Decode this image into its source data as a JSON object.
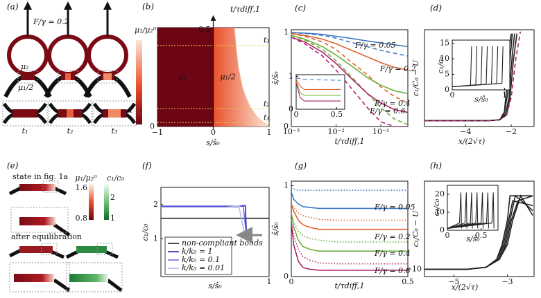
{
  "panel_a": {
    "label": "(a)",
    "force": "F/γ = 0.2",
    "mu2": "μ₂",
    "mu1_half": "μ₁/2",
    "times": [
      "t₁",
      "t₂",
      "t₃"
    ]
  },
  "panel_e": {
    "label": "(e)",
    "state": "state in fig. 1a",
    "after": "after equilibration",
    "cb1_label": "μ₁/μ₂⁰",
    "cb1_ticks": [
      1.6,
      0.8
    ],
    "cb2_label": "c₁/c₀",
    "cb2_ticks": [
      2,
      1
    ]
  },
  "chart_data": [
    {
      "type": "heatmap",
      "panel_label": "(b)",
      "xlabel": "s/ŝ₀",
      "ylabel": "t/τdiff,1",
      "xlim": [
        -1,
        1
      ],
      "ylim": [
        0,
        0.5
      ],
      "xticks": [
        {
          "value": -1,
          "label": "−1"
        },
        0,
        1
      ],
      "yticks": [
        0,
        0.5
      ],
      "left_label": "μ₂",
      "right_label": "μ₁/2",
      "left_color": "#6e0514",
      "right_colors": [
        "#e8502a",
        "#fde4d8"
      ],
      "boundary": {
        "t": [
          0,
          0.02,
          0.05,
          0.1,
          0.15,
          0.2,
          0.3,
          0.4,
          0.5
        ],
        "s": [
          1,
          0.9,
          0.78,
          0.66,
          0.58,
          0.52,
          0.45,
          0.41,
          0.38
        ]
      },
      "times": [
        {
          "label": "t₁",
          "value": 0.02
        },
        {
          "label": "t₂",
          "value": 0.09
        },
        {
          "label": "t₃",
          "value": 0.41
        }
      ],
      "cbar_label": "μ₁/μ₂⁰",
      "cbar_lim": [
        0.8,
        2
      ],
      "cbar_ticks": [
        1
      ]
    },
    {
      "type": "line",
      "panel_label": "(c)",
      "xlabel": "t/τdiff,1",
      "ylabel": "ŝ/ŝ₀",
      "xlog": true,
      "xlim": [
        0.001,
        0.4
      ],
      "ylim": [
        0,
        1.03
      ],
      "xticks": [
        {
          "value": 0.001,
          "label": "10⁻³"
        },
        {
          "value": 0.01,
          "label": "10⁻²"
        },
        {
          "value": 0.1,
          "label": "10⁻¹"
        }
      ],
      "yticks": [
        0,
        1
      ],
      "x": [
        0.001,
        0.002,
        0.005,
        0.01,
        0.02,
        0.05,
        0.1,
        0.2,
        0.4
      ],
      "series": [
        {
          "color": "#3a78c4",
          "style": "solid",
          "values": [
            1,
            0.995,
            0.98,
            0.96,
            0.94,
            0.91,
            0.89,
            0.87,
            0.85
          ]
        },
        {
          "color": "#3a78c4",
          "style": "dashed",
          "values": [
            1,
            0.99,
            0.97,
            0.94,
            0.9,
            0.85,
            0.81,
            0.78,
            0.75
          ]
        },
        {
          "color": "#e0622a",
          "style": "solid",
          "values": [
            0.99,
            0.97,
            0.93,
            0.88,
            0.82,
            0.74,
            0.68,
            0.63,
            0.6
          ]
        },
        {
          "color": "#e0622a",
          "style": "dashed",
          "values": [
            0.99,
            0.96,
            0.9,
            0.82,
            0.7,
            0.55,
            0.42,
            0.32,
            0.25
          ]
        },
        {
          "color": "#6cae3a",
          "style": "solid",
          "values": [
            0.97,
            0.93,
            0.85,
            0.76,
            0.66,
            0.52,
            0.44,
            0.38,
            0.35
          ]
        },
        {
          "color": "#6cae3a",
          "style": "dashed",
          "values": [
            0.97,
            0.92,
            0.82,
            0.7,
            0.55,
            0.35,
            0.2,
            0.08,
            0.02
          ]
        },
        {
          "color": "#b0206a",
          "style": "solid",
          "values": [
            0.95,
            0.9,
            0.79,
            0.67,
            0.53,
            0.35,
            0.25,
            0.18,
            0.15
          ]
        },
        {
          "color": "#b0206a",
          "style": "dashed",
          "values": [
            0.95,
            0.88,
            0.75,
            0.6,
            0.43,
            0.2,
            0.05,
            0,
            0
          ]
        }
      ],
      "annotations": [
        {
          "text": "F/γ = 0.05",
          "color": "#3a78c4"
        },
        {
          "text": "F/γ = 0.2",
          "color": "#e0622a"
        },
        {
          "text": "F/γ = 0.4",
          "color": "#6cae3a"
        },
        {
          "text": "F/γ = 0.6",
          "color": "#b0206a"
        }
      ]
    },
    {
      "type": "line",
      "xlim": [
        0,
        0.6
      ],
      "ylim": [
        0,
        1.05
      ],
      "xticks": [
        0,
        0.5
      ],
      "yticks": [
        0,
        1
      ],
      "x": [
        0,
        0.05,
        0.1,
        0.55
      ],
      "series": [
        {
          "color": "#3a78c4",
          "style": "dashed",
          "values": [
            0.95,
            0.93,
            0.9,
            0.88
          ]
        },
        {
          "color": "#e0622a",
          "style": "solid",
          "values": [
            0.9,
            0.7,
            0.6,
            0.6
          ]
        },
        {
          "color": "#6cae3a",
          "style": "solid",
          "values": [
            0.85,
            0.5,
            0.42,
            0.42
          ]
        },
        {
          "color": "#b0206a",
          "style": "solid",
          "values": [
            0.8,
            0.35,
            0.25,
            0.25
          ]
        }
      ]
    },
    {
      "type": "line",
      "panel_label": "(d)",
      "xlabel": "x/(2√τ)",
      "ylabel": "c₁/C₀ − U",
      "xlim": [
        -5.8,
        -1
      ],
      "ylim": [
        0,
        10
      ],
      "xticks": [
        {
          "value": -4,
          "label": "−4"
        },
        {
          "value": -2,
          "label": "−2"
        }
      ],
      "yticks": [],
      "series": [
        {
          "color": "#222222",
          "style": "solid",
          "x": [
            -5.8,
            -3,
            -2.5,
            -2.3,
            -2.2,
            -2.1,
            -2.0
          ],
          "values": [
            0.6,
            0.6,
            0.7,
            1.5,
            4,
            8,
            9.6
          ]
        },
        {
          "color": "#222222",
          "style": "solid",
          "x": [
            -5.8,
            -3,
            -2.5,
            -2.3,
            -2.15,
            -2.05,
            -1.95
          ],
          "values": [
            0.6,
            0.6,
            0.7,
            1.4,
            3.5,
            7,
            9.6
          ]
        },
        {
          "color": "#222222",
          "style": "solid",
          "x": [
            -5.8,
            -3,
            -2.5,
            -2.25,
            -2.1,
            -1.95,
            -1.85
          ],
          "values": [
            0.6,
            0.6,
            0.7,
            1.3,
            3,
            7.5,
            9.6
          ]
        },
        {
          "color": "#222222",
          "style": "solid",
          "x": [
            -5.8,
            -3,
            -2.5,
            -2.2,
            -2.05,
            -1.9,
            -1.75
          ],
          "values": [
            0.6,
            0.6,
            0.7,
            1.2,
            3,
            7,
            9.6
          ]
        },
        {
          "color": "#b0206a",
          "style": "dashed",
          "x": [
            -5.8,
            -3,
            -2.5,
            -2.2,
            -2.0,
            -1.8,
            -1.6
          ],
          "values": [
            0.6,
            0.6,
            0.7,
            1.2,
            3,
            7,
            9.8
          ]
        }
      ]
    },
    {
      "type": "line",
      "xlabel": "s/ŝ₀",
      "ylabel": "c₁/c₀",
      "xlim": [
        0,
        1.1
      ],
      "ylim": [
        0,
        16
      ],
      "xticks": [
        0,
        1
      ],
      "yticks": [
        0,
        5,
        10,
        15
      ],
      "series": [
        {
          "color": "#222222",
          "style": "solid",
          "x": [
            0,
            0.35,
            0.37
          ],
          "values": [
            1,
            1.5,
            14
          ]
        },
        {
          "color": "#222222",
          "style": "solid",
          "x": [
            0,
            0.45,
            0.47
          ],
          "values": [
            1,
            1.6,
            14
          ]
        },
        {
          "color": "#222222",
          "style": "solid",
          "x": [
            0,
            0.55,
            0.57
          ],
          "values": [
            1,
            1.7,
            14
          ]
        },
        {
          "color": "#222222",
          "style": "solid",
          "x": [
            0,
            0.65,
            0.67
          ],
          "values": [
            1,
            1.8,
            14
          ]
        },
        {
          "color": "#222222",
          "style": "solid",
          "x": [
            0,
            0.75,
            0.77
          ],
          "values": [
            1,
            1.9,
            14
          ]
        },
        {
          "color": "#222222",
          "style": "solid",
          "x": [
            0,
            0.85,
            0.87
          ],
          "values": [
            1,
            2,
            14
          ]
        },
        {
          "color": "#222222",
          "style": "solid",
          "x": [
            0,
            0.95,
            0.97
          ],
          "values": [
            1,
            2.1,
            14
          ]
        }
      ]
    },
    {
      "type": "line",
      "panel_label": "(f)",
      "xlabel": "s/ŝ₀",
      "ylabel": "c₁/c₀",
      "xlim": [
        0,
        1
      ],
      "ylim": [
        -0.1,
        2.5
      ],
      "xticks": [
        1
      ],
      "yticks": [
        1,
        2
      ],
      "series": [
        {
          "name": "non-compliant bonds",
          "color": "#222222",
          "style": "solid",
          "x": [
            0,
            1
          ],
          "values": [
            1.6,
            1.6
          ]
        },
        {
          "name": "k/k₀ = 1",
          "color": "#2020c0",
          "style": "solid",
          "x": [
            0,
            0.75,
            0.78,
            0.79,
            0.8
          ],
          "values": [
            1.95,
            1.95,
            1.97,
            1.2,
            1.05
          ]
        },
        {
          "name": "k/k₀ = 0.1",
          "color": "#7070e0",
          "style": "solid",
          "x": [
            0,
            0.7,
            0.76,
            0.79
          ],
          "values": [
            1.93,
            1.93,
            1.98,
            1.1
          ]
        },
        {
          "name": "k/k₀ = 0.01",
          "color": "#b8b8f0",
          "style": "solid",
          "x": [
            0,
            0.6,
            0.72,
            0.78
          ],
          "values": [
            1.92,
            1.92,
            1.96,
            1.05
          ]
        }
      ]
    },
    {
      "type": "line",
      "panel_label": "(g)",
      "xlabel": "t/τdiff,1",
      "ylabel": "ŝ/ŝ₀",
      "xlim": [
        0,
        0.5
      ],
      "ylim": [
        0,
        1.05
      ],
      "xticks": [
        0,
        0.5
      ],
      "yticks": [
        0,
        1
      ],
      "x": [
        0,
        0.01,
        0.03,
        0.05,
        0.08,
        0.12,
        0.2,
        0.3,
        0.5
      ],
      "series": [
        {
          "color": "#3a78c4",
          "style": "dotted",
          "values": [
            0.97,
            0.96,
            0.95,
            0.95,
            0.95,
            0.95,
            0.95,
            0.95,
            0.95
          ]
        },
        {
          "color": "#3a78c4",
          "style": "solid",
          "values": [
            0.93,
            0.85,
            0.8,
            0.77,
            0.76,
            0.75,
            0.75,
            0.75,
            0.75
          ]
        },
        {
          "color": "#e0622a",
          "style": "dotted",
          "values": [
            0.8,
            0.76,
            0.7,
            0.67,
            0.65,
            0.63,
            0.62,
            0.62,
            0.62
          ]
        },
        {
          "color": "#e0622a",
          "style": "solid",
          "values": [
            0.8,
            0.72,
            0.62,
            0.57,
            0.54,
            0.52,
            0.52,
            0.52,
            0.52
          ]
        },
        {
          "color": "#6cae3a",
          "style": "dotted",
          "values": [
            0.7,
            0.6,
            0.5,
            0.45,
            0.42,
            0.4,
            0.38,
            0.38,
            0.38
          ]
        },
        {
          "color": "#6cae3a",
          "style": "solid",
          "values": [
            0.7,
            0.55,
            0.4,
            0.33,
            0.3,
            0.28,
            0.28,
            0.28,
            0.28
          ]
        },
        {
          "color": "#b0206a",
          "style": "dotted",
          "values": [
            0.6,
            0.45,
            0.3,
            0.22,
            0.18,
            0.15,
            0.14,
            0.14,
            0.14
          ]
        },
        {
          "color": "#b0206a",
          "style": "solid",
          "values": [
            0.6,
            0.35,
            0.17,
            0.1,
            0.08,
            0.07,
            0.07,
            0.07,
            0.07
          ]
        }
      ],
      "annotations": [
        {
          "text": "F/γ = 0.05",
          "color": "#3a78c4"
        },
        {
          "text": "F/γ = 0.2",
          "color": "#e0622a"
        },
        {
          "text": "F/γ = 0.4",
          "color": "#6cae3a"
        },
        {
          "text": "F/γ = 0.6",
          "color": "#b0206a"
        }
      ]
    },
    {
      "type": "line",
      "panel_label": "(h)",
      "xlabel": "x/(2√τ)",
      "ylabel": "c₁/C₀ − U",
      "xlim": [
        -6.1,
        -2
      ],
      "ylim": [
        -11.5,
        8
      ],
      "xticks": [
        {
          "value": -5,
          "label": "−5"
        },
        {
          "value": -3,
          "label": "−3"
        }
      ],
      "yticks": [
        {
          "value": -10,
          "label": "−10"
        }
      ],
      "series": [
        {
          "color": "#222222",
          "style": "solid",
          "x": [
            -6.1,
            -4.5,
            -3.8,
            -3.4,
            -3.2,
            -3.0,
            -2.9,
            -2.05
          ],
          "values": [
            -10,
            -10,
            -9.6,
            -8,
            -5,
            0,
            5,
            5
          ]
        },
        {
          "color": "#222222",
          "style": "solid",
          "x": [
            -6.1,
            -4.5,
            -3.8,
            -3.4,
            -3.15,
            -2.95,
            -2.8,
            -2.05
          ],
          "values": [
            -10,
            -10,
            -9.6,
            -8,
            -5,
            0,
            4,
            3
          ]
        },
        {
          "color": "#222222",
          "style": "solid",
          "x": [
            -6.1,
            -4.5,
            -3.8,
            -3.35,
            -3.1,
            -2.9,
            -2.7,
            -2.05
          ],
          "values": [
            -10,
            -10,
            -9.6,
            -8,
            -5,
            0,
            5,
            2
          ]
        },
        {
          "color": "#222222",
          "style": "solid",
          "x": [
            -6.1,
            -4.5,
            -3.8,
            -3.3,
            -3.05,
            -2.85,
            -2.6,
            -2.05
          ],
          "values": [
            -10,
            -10,
            -9.6,
            -8,
            -5,
            0,
            4,
            5
          ]
        },
        {
          "color": "#222222",
          "style": "solid",
          "x": [
            -6.1,
            -4.5,
            -3.8,
            -3.3,
            -3.0,
            -2.8,
            -2.5,
            -2.05
          ],
          "values": [
            -10,
            -10,
            -9.6,
            -8,
            -5,
            0,
            5,
            1
          ]
        }
      ]
    },
    {
      "type": "line",
      "xlabel": "s/ŝ₀",
      "ylabel": "c₁/c₀",
      "xlim": [
        0,
        0.75
      ],
      "ylim": [
        0,
        25
      ],
      "xticks": [
        0,
        0.5
      ],
      "yticks": [
        0,
        10,
        20
      ],
      "series": [
        {
          "color": "#222222",
          "style": "solid",
          "x": [
            0,
            0.18,
            0.2,
            0.21
          ],
          "values": [
            1,
            4,
            21,
            1
          ]
        },
        {
          "color": "#222222",
          "style": "solid",
          "x": [
            0,
            0.26,
            0.28,
            0.29
          ],
          "values": [
            1,
            4,
            21,
            1
          ]
        },
        {
          "color": "#222222",
          "style": "solid",
          "x": [
            0,
            0.34,
            0.36,
            0.37
          ],
          "values": [
            1,
            4,
            21,
            1
          ]
        },
        {
          "color": "#222222",
          "style": "solid",
          "x": [
            0,
            0.42,
            0.44,
            0.45
          ],
          "values": [
            1,
            4,
            21,
            1
          ]
        },
        {
          "color": "#222222",
          "style": "solid",
          "x": [
            0,
            0.5,
            0.52,
            0.53
          ],
          "values": [
            1,
            4,
            21,
            1
          ]
        },
        {
          "color": "#222222",
          "style": "solid",
          "x": [
            0,
            0.58,
            0.6,
            0.61
          ],
          "values": [
            1,
            4,
            21,
            1
          ]
        },
        {
          "color": "#222222",
          "style": "solid",
          "x": [
            0,
            0.66,
            0.68,
            0.69
          ],
          "values": [
            1,
            4,
            21,
            1
          ]
        }
      ]
    }
  ]
}
